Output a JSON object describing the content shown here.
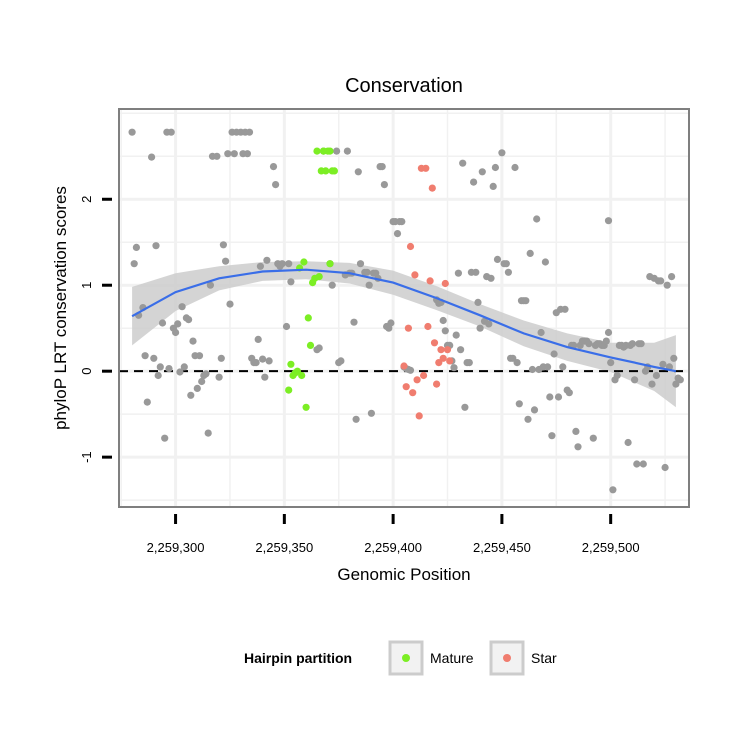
{
  "chart_data": {
    "type": "scatter",
    "title": "Conservation",
    "xlabel": "Genomic Position",
    "ylabel": "phyloP LRT conservation scores",
    "xlim": [
      2259274,
      2259536
    ],
    "ylim": [
      -1.58,
      3.05
    ],
    "x_ticks": [
      2259300,
      2259350,
      2259400,
      2259450,
      2259500
    ],
    "x_tick_labels": [
      "2,259,300",
      "2,259,350",
      "2,259,400",
      "2,259,450",
      "2,259,500"
    ],
    "y_ticks": [
      -1,
      0,
      1,
      2
    ],
    "y_tick_labels": [
      "-1",
      "0",
      "1",
      "2"
    ],
    "grid": true,
    "reference_line": {
      "y": 0,
      "style": "dashed"
    },
    "legend": {
      "title": "Hairpin partition",
      "position": "bottom",
      "entries": [
        {
          "label": "Mature",
          "color": "#7cee24"
        },
        {
          "label": "Star",
          "color": "#f07d6f"
        }
      ]
    },
    "colors": {
      "other": "#999999",
      "mature": "#7cee24",
      "star": "#f07d6f",
      "smooth": "#3a6ee8",
      "band": "#cccccc"
    },
    "series": [
      {
        "key": "other",
        "points": [
          [
            2259280,
            2.78
          ],
          [
            2259281,
            1.25
          ],
          [
            2259282,
            1.44
          ],
          [
            2259283,
            0.65
          ],
          [
            2259285,
            0.74
          ],
          [
            2259286,
            0.18
          ],
          [
            2259287,
            -0.36
          ],
          [
            2259289,
            2.49
          ],
          [
            2259290,
            0.15
          ],
          [
            2259291,
            1.46
          ],
          [
            2259292,
            -0.05
          ],
          [
            2259293,
            0.05
          ],
          [
            2259294,
            0.56
          ],
          [
            2259295,
            -0.78
          ],
          [
            2259296,
            2.78
          ],
          [
            2259298,
            2.78
          ],
          [
            2259297,
            0.03
          ],
          [
            2259299,
            0.5
          ],
          [
            2259300,
            0.45
          ],
          [
            2259301,
            0.55
          ],
          [
            2259302,
            -0.01
          ],
          [
            2259303,
            0.75
          ],
          [
            2259304,
            0.05
          ],
          [
            2259305,
            0.62
          ],
          [
            2259306,
            0.6
          ],
          [
            2259307,
            -0.28
          ],
          [
            2259308,
            0.35
          ],
          [
            2259309,
            0.18
          ],
          [
            2259310,
            -0.2
          ],
          [
            2259311,
            0.18
          ],
          [
            2259312,
            -0.12
          ],
          [
            2259313,
            -0.05
          ],
          [
            2259314,
            -0.03
          ],
          [
            2259315,
            -0.72
          ],
          [
            2259316,
            1.0
          ],
          [
            2259317,
            2.5
          ],
          [
            2259319,
            2.5
          ],
          [
            2259320,
            -0.07
          ],
          [
            2259321,
            0.15
          ],
          [
            2259322,
            1.47
          ],
          [
            2259323,
            1.28
          ],
          [
            2259324,
            2.53
          ],
          [
            2259325,
            0.78
          ],
          [
            2259326,
            2.78
          ],
          [
            2259327,
            2.53
          ],
          [
            2259328,
            2.78
          ],
          [
            2259330,
            2.78
          ],
          [
            2259331,
            2.53
          ],
          [
            2259332,
            2.78
          ],
          [
            2259333,
            2.53
          ],
          [
            2259334,
            2.78
          ],
          [
            2259335,
            0.15
          ],
          [
            2259336,
            0.1
          ],
          [
            2259337,
            0.1
          ],
          [
            2259338,
            0.37
          ],
          [
            2259339,
            1.22
          ],
          [
            2259340,
            0.14
          ],
          [
            2259341,
            -0.07
          ],
          [
            2259342,
            1.29
          ],
          [
            2259343,
            0.12
          ],
          [
            2259345,
            2.38
          ],
          [
            2259346,
            2.17
          ],
          [
            2259347,
            1.25
          ],
          [
            2259348,
            1.22
          ],
          [
            2259349,
            1.25
          ],
          [
            2259351,
            0.52
          ],
          [
            2259352,
            1.25
          ],
          [
            2259353,
            1.04
          ],
          [
            2259365,
            0.25
          ],
          [
            2259366,
            0.27
          ],
          [
            2259368,
            2.56
          ],
          [
            2259371,
            1.25
          ],
          [
            2259372,
            1.0
          ],
          [
            2259374,
            2.56
          ],
          [
            2259375,
            0.1
          ],
          [
            2259376,
            0.12
          ],
          [
            2259378,
            1.12
          ],
          [
            2259379,
            2.56
          ],
          [
            2259380,
            1.14
          ],
          [
            2259381,
            1.14
          ],
          [
            2259382,
            0.57
          ],
          [
            2259383,
            -0.56
          ],
          [
            2259384,
            2.32
          ],
          [
            2259385,
            1.25
          ],
          [
            2259387,
            1.15
          ],
          [
            2259388,
            1.15
          ],
          [
            2259389,
            1.0
          ],
          [
            2259390,
            -0.49
          ],
          [
            2259391,
            1.14
          ],
          [
            2259392,
            1.14
          ],
          [
            2259393,
            1.08
          ],
          [
            2259394,
            2.38
          ],
          [
            2259395,
            2.38
          ],
          [
            2259396,
            2.17
          ],
          [
            2259397,
            0.52
          ],
          [
            2259398,
            0.5
          ],
          [
            2259399,
            0.56
          ],
          [
            2259400,
            1.74
          ],
          [
            2259401,
            1.74
          ],
          [
            2259402,
            1.6
          ],
          [
            2259403,
            1.74
          ],
          [
            2259404,
            1.74
          ],
          [
            2259405,
            0.05
          ],
          [
            2259406,
            0.03
          ],
          [
            2259407,
            0.02
          ],
          [
            2259408,
            0.01
          ],
          [
            2259420,
            0.83
          ],
          [
            2259421,
            0.79
          ],
          [
            2259422,
            0.8
          ],
          [
            2259423,
            0.59
          ],
          [
            2259424,
            0.47
          ],
          [
            2259425,
            0.3
          ],
          [
            2259426,
            0.3
          ],
          [
            2259427,
            0.12
          ],
          [
            2259428,
            0.04
          ],
          [
            2259429,
            0.42
          ],
          [
            2259430,
            1.14
          ],
          [
            2259431,
            0.25
          ],
          [
            2259432,
            2.42
          ],
          [
            2259433,
            -0.42
          ],
          [
            2259434,
            0.1
          ],
          [
            2259435,
            0.1
          ],
          [
            2259436,
            1.15
          ],
          [
            2259437,
            2.2
          ],
          [
            2259438,
            1.15
          ],
          [
            2259439,
            0.8
          ],
          [
            2259440,
            0.5
          ],
          [
            2259441,
            2.32
          ],
          [
            2259442,
            0.58
          ],
          [
            2259443,
            1.1
          ],
          [
            2259444,
            0.55
          ],
          [
            2259445,
            1.08
          ],
          [
            2259446,
            2.15
          ],
          [
            2259447,
            2.37
          ],
          [
            2259448,
            1.3
          ],
          [
            2259450,
            2.54
          ],
          [
            2259451,
            1.25
          ],
          [
            2259452,
            1.25
          ],
          [
            2259453,
            1.15
          ],
          [
            2259454,
            0.15
          ],
          [
            2259455,
            0.15
          ],
          [
            2259456,
            2.37
          ],
          [
            2259457,
            0.1
          ],
          [
            2259458,
            -0.38
          ],
          [
            2259459,
            0.82
          ],
          [
            2259460,
            0.82
          ],
          [
            2259461,
            0.82
          ],
          [
            2259462,
            -0.56
          ],
          [
            2259463,
            1.37
          ],
          [
            2259464,
            0.02
          ],
          [
            2259465,
            -0.45
          ],
          [
            2259466,
            1.77
          ],
          [
            2259467,
            0.02
          ],
          [
            2259468,
            0.45
          ],
          [
            2259469,
            0.05
          ],
          [
            2259470,
            1.27
          ],
          [
            2259471,
            0.05
          ],
          [
            2259472,
            -0.3
          ],
          [
            2259473,
            -0.75
          ],
          [
            2259474,
            0.2
          ],
          [
            2259475,
            0.68
          ],
          [
            2259476,
            -0.3
          ],
          [
            2259477,
            0.72
          ],
          [
            2259478,
            0.05
          ],
          [
            2259479,
            0.72
          ],
          [
            2259480,
            -0.22
          ],
          [
            2259481,
            -0.25
          ],
          [
            2259482,
            0.3
          ],
          [
            2259483,
            0.3
          ],
          [
            2259484,
            -0.7
          ],
          [
            2259485,
            -0.88
          ],
          [
            2259486,
            0.3
          ],
          [
            2259487,
            0.35
          ],
          [
            2259488,
            0.35
          ],
          [
            2259489,
            0.35
          ],
          [
            2259490,
            0.32
          ],
          [
            2259492,
            -0.78
          ],
          [
            2259493,
            0.3
          ],
          [
            2259494,
            0.32
          ],
          [
            2259495,
            0.32
          ],
          [
            2259496,
            0.3
          ],
          [
            2259497,
            0.3
          ],
          [
            2259498,
            0.35
          ],
          [
            2259499,
            0.45
          ],
          [
            2259499,
            1.75
          ],
          [
            2259500,
            0.1
          ],
          [
            2259501,
            -1.38
          ],
          [
            2259502,
            -0.1
          ],
          [
            2259503,
            -0.05
          ],
          [
            2259504,
            0.3
          ],
          [
            2259505,
            0.3
          ],
          [
            2259506,
            0.28
          ],
          [
            2259507,
            0.3
          ],
          [
            2259508,
            -0.83
          ],
          [
            2259509,
            0.3
          ],
          [
            2259510,
            0.32
          ],
          [
            2259511,
            -0.1
          ],
          [
            2259512,
            -1.08
          ],
          [
            2259513,
            0.32
          ],
          [
            2259514,
            0.32
          ],
          [
            2259515,
            -1.08
          ],
          [
            2259516,
            0.0
          ],
          [
            2259517,
            0.05
          ],
          [
            2259518,
            1.1
          ],
          [
            2259519,
            -0.15
          ],
          [
            2259520,
            1.08
          ],
          [
            2259521,
            -0.05
          ],
          [
            2259522,
            1.05
          ],
          [
            2259523,
            1.05
          ],
          [
            2259524,
            0.08
          ],
          [
            2259525,
            -1.12
          ],
          [
            2259526,
            1.0
          ],
          [
            2259527,
            0.05
          ],
          [
            2259528,
            1.1
          ],
          [
            2259529,
            0.15
          ],
          [
            2259530,
            -0.15
          ],
          [
            2259531,
            -0.08
          ],
          [
            2259532,
            -0.1
          ]
        ]
      },
      {
        "key": "mature",
        "name": "Mature",
        "points": [
          [
            2259352,
            -0.22
          ],
          [
            2259353,
            0.08
          ],
          [
            2259354,
            -0.05
          ],
          [
            2259355,
            -0.02
          ],
          [
            2259356,
            0.0
          ],
          [
            2259357,
            1.2
          ],
          [
            2259358,
            -0.05
          ],
          [
            2259359,
            1.27
          ],
          [
            2259360,
            -0.42
          ],
          [
            2259361,
            0.62
          ],
          [
            2259362,
            0.3
          ],
          [
            2259363,
            1.03
          ],
          [
            2259364,
            1.08
          ],
          [
            2259365,
            2.56
          ],
          [
            2259366,
            1.1
          ],
          [
            2259367,
            2.33
          ],
          [
            2259368,
            2.56
          ],
          [
            2259369,
            2.33
          ],
          [
            2259370,
            2.56
          ],
          [
            2259371,
            1.25
          ],
          [
            2259371,
            2.56
          ],
          [
            2259372,
            2.33
          ],
          [
            2259373,
            2.33
          ]
        ]
      },
      {
        "key": "star",
        "name": "Star",
        "points": [
          [
            2259405,
            0.06
          ],
          [
            2259406,
            -0.18
          ],
          [
            2259407,
            0.5
          ],
          [
            2259408,
            1.45
          ],
          [
            2259409,
            -0.25
          ],
          [
            2259410,
            1.12
          ],
          [
            2259411,
            -0.1
          ],
          [
            2259412,
            -0.52
          ],
          [
            2259413,
            2.36
          ],
          [
            2259414,
            -0.05
          ],
          [
            2259415,
            2.36
          ],
          [
            2259416,
            0.52
          ],
          [
            2259417,
            1.05
          ],
          [
            2259418,
            2.13
          ],
          [
            2259419,
            0.33
          ],
          [
            2259420,
            -0.15
          ],
          [
            2259421,
            0.1
          ],
          [
            2259422,
            0.25
          ],
          [
            2259423,
            0.15
          ],
          [
            2259424,
            1.02
          ],
          [
            2259425,
            0.25
          ],
          [
            2259426,
            0.12
          ]
        ]
      }
    ],
    "smooth": {
      "x": [
        2259280,
        2259300,
        2259320,
        2259340,
        2259360,
        2259380,
        2259400,
        2259420,
        2259440,
        2259460,
        2259480,
        2259500,
        2259520,
        2259530
      ],
      "y": [
        0.64,
        0.92,
        1.08,
        1.16,
        1.18,
        1.14,
        1.03,
        0.85,
        0.65,
        0.44,
        0.28,
        0.16,
        0.05,
        0.0
      ],
      "upper": [
        0.98,
        1.14,
        1.22,
        1.27,
        1.28,
        1.26,
        1.17,
        0.99,
        0.78,
        0.59,
        0.44,
        0.33,
        0.33,
        0.42
      ],
      "lower": [
        0.3,
        0.7,
        0.94,
        1.05,
        1.07,
        1.02,
        0.89,
        0.71,
        0.52,
        0.29,
        0.12,
        -0.01,
        -0.23,
        -0.42
      ]
    }
  }
}
